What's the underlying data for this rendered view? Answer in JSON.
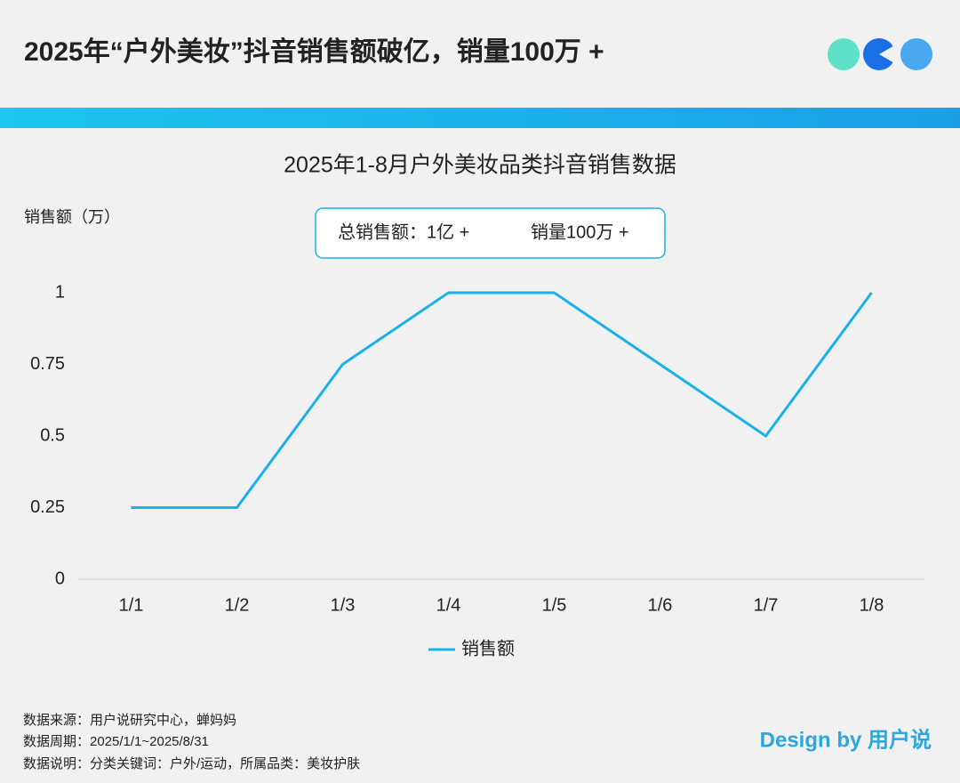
{
  "header": {
    "title": "2025年“户外美妆”抖音销售额破亿，销量100万 +"
  },
  "chart_data": {
    "type": "line",
    "title": "2025年1-8月户外美妆品类抖音销售数据",
    "y_label": "销售额（万）",
    "categories": [
      "1/1",
      "1/2",
      "1/3",
      "1/4",
      "1/5",
      "1/6",
      "1/7",
      "1/8"
    ],
    "series": [
      {
        "name": "销售额",
        "color": "#1ab0ea",
        "values": [
          0.25,
          0.25,
          0.75,
          1,
          1,
          0.75,
          0.5,
          1
        ]
      }
    ],
    "ylim": [
      0,
      1
    ],
    "yticks": [
      0,
      0.25,
      0.5,
      0.75,
      1
    ],
    "grid": false,
    "legend": "bottom"
  },
  "annotation": {
    "total_sales": "总销售额：1亿 +",
    "volume": "销量100万 +"
  },
  "footer": {
    "lines": [
      "数据来源：用户说研究中心，蝉妈妈",
      "数据周期：2025/1/1~2025/8/31",
      "数据说明：分类关键词：户外/运动，所属品类：美妆护肤"
    ],
    "brand": "Design by 用户说"
  }
}
